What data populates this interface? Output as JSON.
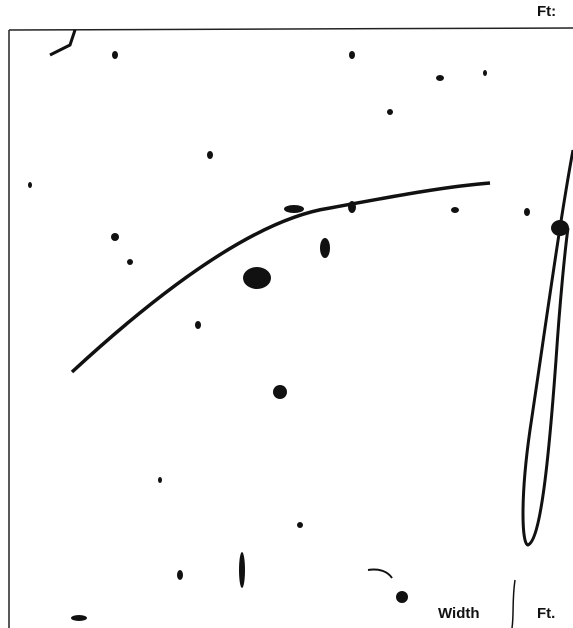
{
  "labels": {
    "top_unit": "Ft:",
    "x_label": "Width",
    "x_unit": "Ft."
  }
}
